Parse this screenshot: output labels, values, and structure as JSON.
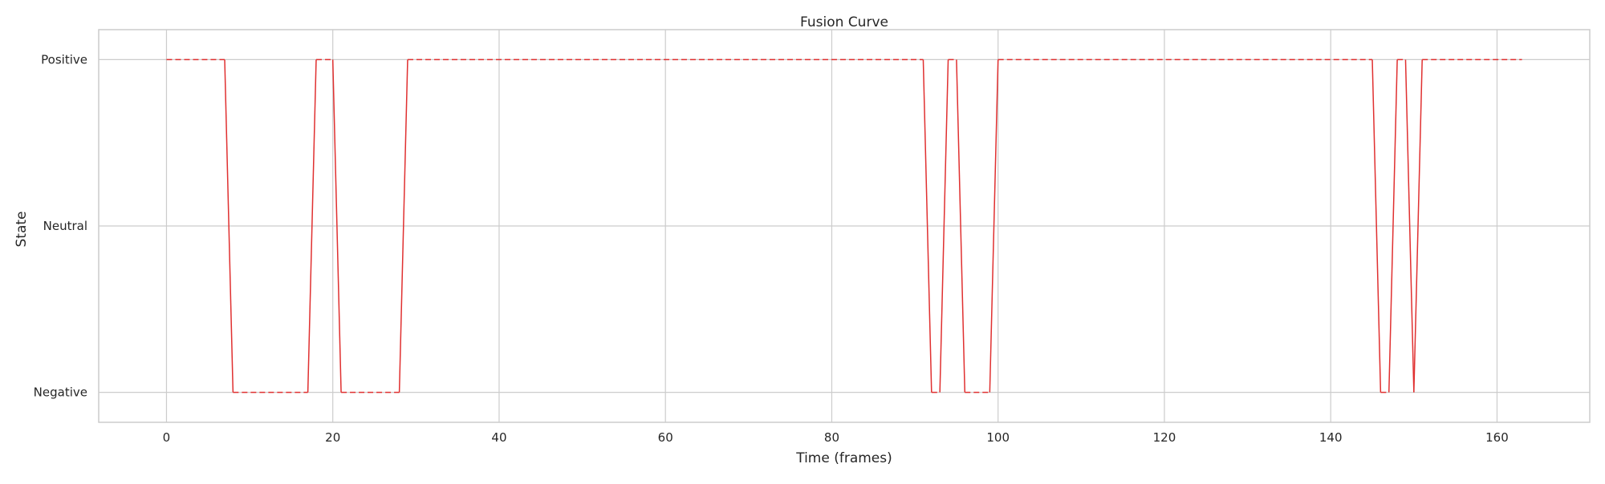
{
  "chart_data": {
    "type": "line",
    "title": "Fusion Curve",
    "xlabel": "Time (frames)",
    "ylabel": "State",
    "xlim": [
      -8.15,
      171.15
    ],
    "ylim": [
      -0.09,
      1.09
    ],
    "x_ticks": [
      0,
      20,
      40,
      60,
      80,
      100,
      120,
      140,
      160
    ],
    "y_ticks": [
      {
        "value": 0,
        "label": "Negative"
      },
      {
        "value": 0.5,
        "label": "Neutral"
      },
      {
        "value": 1,
        "label": "Positive"
      }
    ],
    "grid": true,
    "line_color": "#e03030",
    "segments": [
      {
        "style": "dashed",
        "x": [
          0,
          7
        ],
        "y": [
          1,
          1
        ]
      },
      {
        "style": "solid",
        "x": [
          7,
          8
        ],
        "y": [
          1,
          0
        ]
      },
      {
        "style": "dashed",
        "x": [
          8,
          17
        ],
        "y": [
          0,
          0
        ]
      },
      {
        "style": "solid",
        "x": [
          17,
          18
        ],
        "y": [
          0,
          1
        ]
      },
      {
        "style": "dashed",
        "x": [
          18,
          20
        ],
        "y": [
          1,
          1
        ]
      },
      {
        "style": "solid",
        "x": [
          20,
          21
        ],
        "y": [
          1,
          0
        ]
      },
      {
        "style": "dashed",
        "x": [
          21,
          28
        ],
        "y": [
          0,
          0
        ]
      },
      {
        "style": "solid",
        "x": [
          28,
          29
        ],
        "y": [
          0,
          1
        ]
      },
      {
        "style": "dashed",
        "x": [
          29,
          91
        ],
        "y": [
          1,
          1
        ]
      },
      {
        "style": "solid",
        "x": [
          91,
          92
        ],
        "y": [
          1,
          0
        ]
      },
      {
        "style": "dashed",
        "x": [
          92,
          93
        ],
        "y": [
          0,
          0
        ]
      },
      {
        "style": "solid",
        "x": [
          93,
          94
        ],
        "y": [
          0,
          1
        ]
      },
      {
        "style": "dashed",
        "x": [
          94,
          95
        ],
        "y": [
          1,
          1
        ]
      },
      {
        "style": "solid",
        "x": [
          95,
          96
        ],
        "y": [
          1,
          0
        ]
      },
      {
        "style": "dashed",
        "x": [
          96,
          99
        ],
        "y": [
          0,
          0
        ]
      },
      {
        "style": "solid",
        "x": [
          99,
          100
        ],
        "y": [
          0,
          1
        ]
      },
      {
        "style": "dashed",
        "x": [
          100,
          145
        ],
        "y": [
          1,
          1
        ]
      },
      {
        "style": "solid",
        "x": [
          145,
          146
        ],
        "y": [
          1,
          0
        ]
      },
      {
        "style": "dashed",
        "x": [
          146,
          147
        ],
        "y": [
          0,
          0
        ]
      },
      {
        "style": "solid",
        "x": [
          147,
          148
        ],
        "y": [
          0,
          1
        ]
      },
      {
        "style": "dashed",
        "x": [
          148,
          149
        ],
        "y": [
          1,
          1
        ]
      },
      {
        "style": "solid",
        "x": [
          149,
          150
        ],
        "y": [
          1,
          0
        ]
      },
      {
        "style": "solid",
        "x": [
          150,
          151
        ],
        "y": [
          0,
          1
        ]
      },
      {
        "style": "dashed",
        "x": [
          151,
          163
        ],
        "y": [
          1,
          1
        ]
      }
    ]
  }
}
